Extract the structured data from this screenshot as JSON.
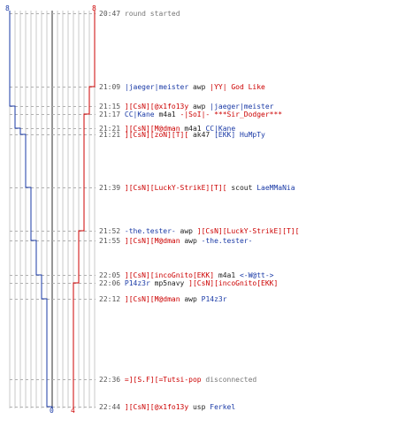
{
  "scores": {
    "blue_start": "8",
    "red_start": "8",
    "blue_end": "0",
    "red_end": "4"
  },
  "colors": {
    "team_red": "#cc0000",
    "team_blue": "#1a3aa6",
    "time": "#555555",
    "grid": "#c8c8c8"
  },
  "events": [
    {
      "time": "20:47",
      "parts": [
        {
          "text": "round started",
          "team": "system"
        }
      ]
    },
    {
      "time": "21:09",
      "parts": [
        {
          "text": "|jaeger|meister",
          "team": "blue"
        },
        {
          "text": " awp ",
          "team": "weapon"
        },
        {
          "text": "|YY| God Like",
          "team": "red"
        }
      ]
    },
    {
      "time": "21:15",
      "parts": [
        {
          "text": "][CsN][@x1fo13y",
          "team": "red"
        },
        {
          "text": " awp ",
          "team": "weapon"
        },
        {
          "text": "|jaeger|meister",
          "team": "blue"
        }
      ]
    },
    {
      "time": "21:17",
      "parts": [
        {
          "text": "CC|Kane",
          "team": "blue"
        },
        {
          "text": " m4a1 ",
          "team": "weapon"
        },
        {
          "text": "-|SoI|- ***Sir_Dodger***",
          "team": "red"
        }
      ]
    },
    {
      "time": "21:21",
      "parts": [
        {
          "text": "][CsN][M@dman",
          "team": "red"
        },
        {
          "text": " m4a1 ",
          "team": "weapon"
        },
        {
          "text": "CC|Kane",
          "team": "blue"
        }
      ]
    },
    {
      "time": "21:21",
      "parts": [
        {
          "text": "][CsN][zoN][T][",
          "team": "red"
        },
        {
          "text": " ak47 ",
          "team": "weapon"
        },
        {
          "text": "[EKK] HuMpTy",
          "team": "blue"
        }
      ]
    },
    {
      "time": "21:39",
      "parts": [
        {
          "text": "][CsN][LuckY-StrikE][T][",
          "team": "red"
        },
        {
          "text": " scout ",
          "team": "weapon"
        },
        {
          "text": "LaeMMaNia",
          "team": "blue"
        }
      ]
    },
    {
      "time": "21:52",
      "parts": [
        {
          "text": "-the.tester-",
          "team": "blue"
        },
        {
          "text": " awp ",
          "team": "weapon"
        },
        {
          "text": "][CsN][LuckY-StrikE][T][",
          "team": "red"
        }
      ]
    },
    {
      "time": "21:55",
      "parts": [
        {
          "text": "][CsN][M@dman",
          "team": "red"
        },
        {
          "text": " awp ",
          "team": "weapon"
        },
        {
          "text": "-the.tester-",
          "team": "blue"
        }
      ]
    },
    {
      "time": "22:05",
      "parts": [
        {
          "text": "][CsN][incoGnito[EKK]",
          "team": "red"
        },
        {
          "text": " m4a1 ",
          "team": "weapon"
        },
        {
          "text": "<-W@tt->",
          "team": "blue"
        }
      ]
    },
    {
      "time": "22:06",
      "parts": [
        {
          "text": "P14z3r",
          "team": "blue"
        },
        {
          "text": " mp5navy ",
          "team": "weapon"
        },
        {
          "text": "][CsN][incoGnito[EKK]",
          "team": "red"
        }
      ]
    },
    {
      "time": "22:12",
      "parts": [
        {
          "text": "][CsN][M@dman",
          "team": "red"
        },
        {
          "text": " awp ",
          "team": "weapon"
        },
        {
          "text": "P14z3r",
          "team": "blue"
        }
      ]
    },
    {
      "time": "22:36",
      "parts": [
        {
          "text": "=][S.F][=Tutsi-pop",
          "team": "red"
        },
        {
          "text": " disconnected",
          "team": "system"
        }
      ]
    },
    {
      "time": "22:44",
      "parts": [
        {
          "text": "][CsN][@x1fo13y",
          "team": "red"
        },
        {
          "text": " usp ",
          "team": "weapon"
        },
        {
          "text": "Ferkel",
          "team": "blue"
        }
      ]
    }
  ]
}
